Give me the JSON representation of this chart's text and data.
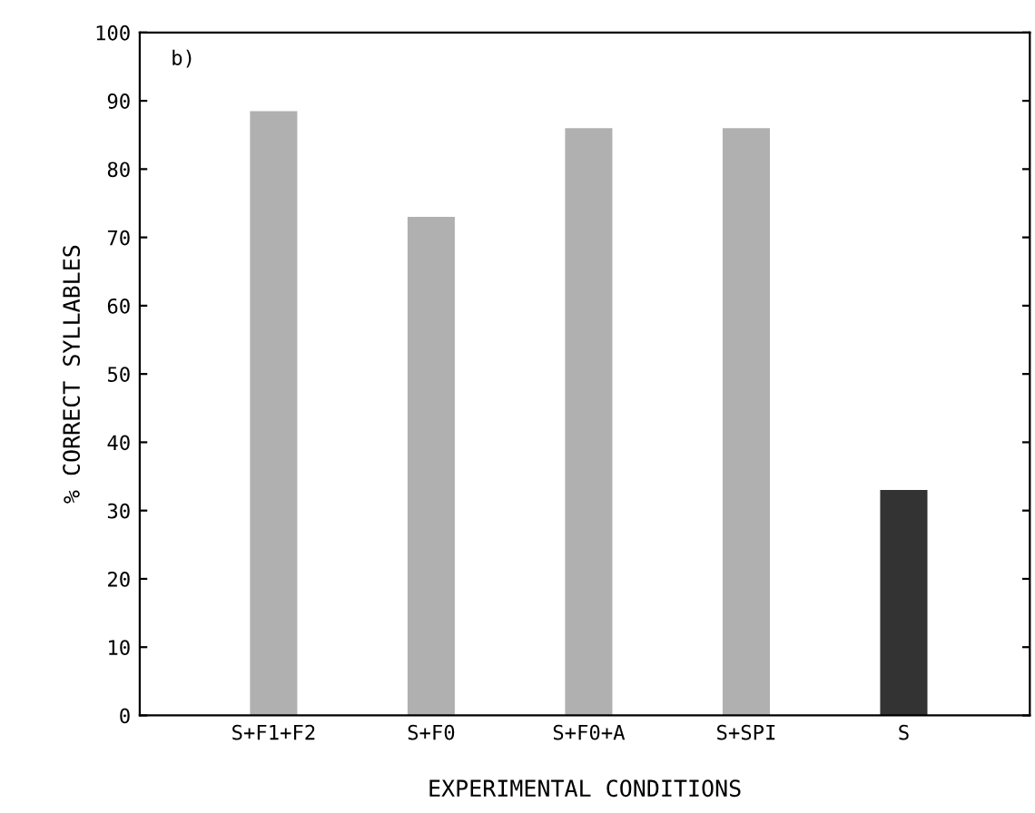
{
  "chart_data": {
    "type": "bar",
    "xlabel": "EXPERIMENTAL CONDITIONS",
    "ylabel": "% CORRECT SYLLABLES",
    "annotations": [
      "b)"
    ],
    "categories": [
      "S+F1+F2",
      "S+F0",
      "S+F0+A",
      "S+SPI",
      "S"
    ],
    "values": [
      88.5,
      73,
      86,
      86,
      33
    ],
    "colors": [
      "#b0b0b0",
      "#b0b0b0",
      "#b0b0b0",
      "#b0b0b0",
      "#333333"
    ],
    "ylim": [
      0,
      100
    ],
    "yticks": [
      0,
      10,
      20,
      30,
      40,
      50,
      60,
      70,
      80,
      90,
      100
    ],
    "grid": false,
    "legend": false
  }
}
